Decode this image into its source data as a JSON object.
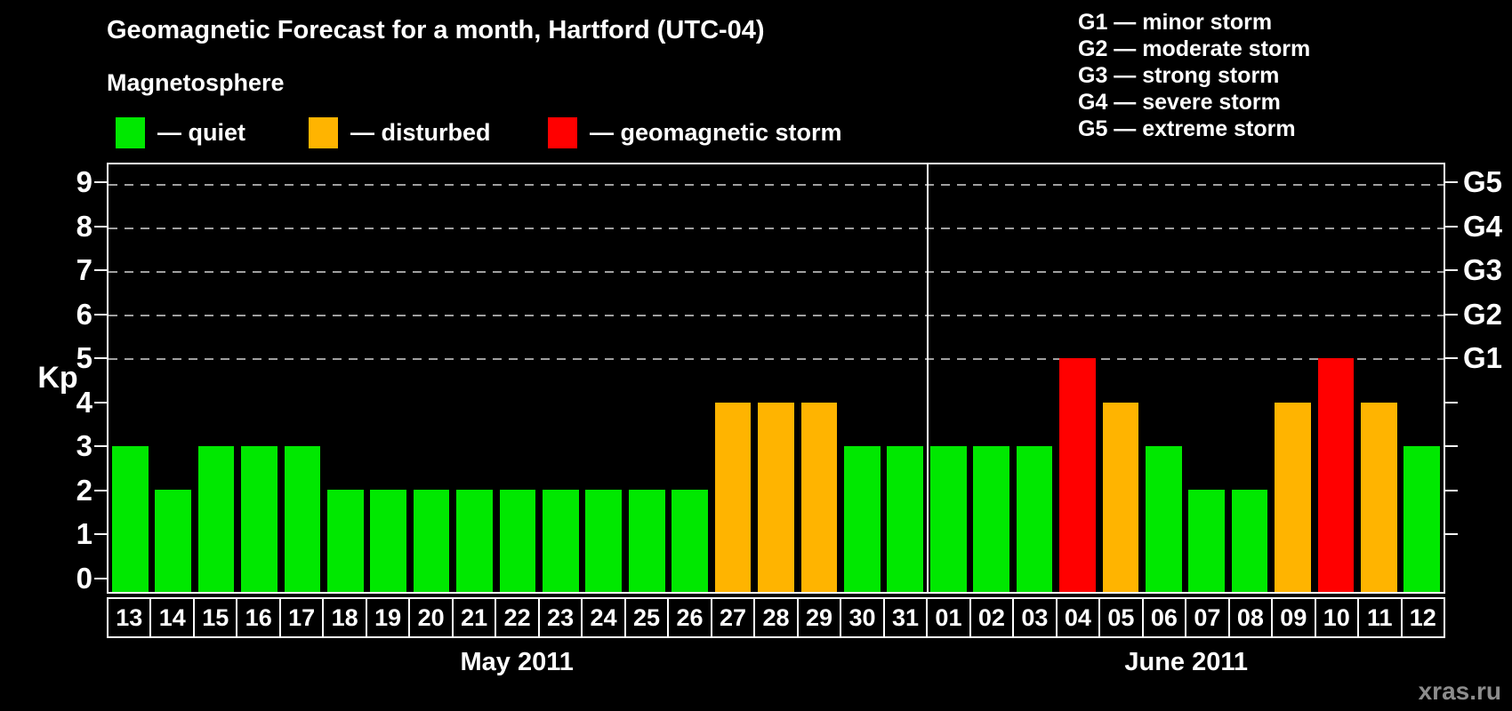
{
  "title": "Geomagnetic Forecast for a month, Hartford (UTC-04)",
  "subtitle": "Magnetosphere",
  "legend": {
    "items": [
      {
        "label": "— quiet",
        "status": "quiet",
        "color": "#00e800"
      },
      {
        "label": "— disturbed",
        "status": "disturbed",
        "color": "#ffb400"
      },
      {
        "label": "— geomagnetic storm",
        "status": "storm",
        "color": "#ff0000"
      }
    ]
  },
  "g_scale_legend": [
    "G1 — minor storm",
    "G2 — moderate storm",
    "G3 — strong storm",
    "G4 — severe storm",
    "G5 — extreme storm"
  ],
  "watermark": "xras.ru",
  "chart_data": {
    "type": "bar",
    "title": "Geomagnetic Forecast for a month, Hartford (UTC-04)",
    "ylabel": "Kp",
    "ylim": [
      0,
      9
    ],
    "y_ticks": [
      0,
      1,
      2,
      3,
      4,
      5,
      6,
      7,
      8,
      9
    ],
    "gridlines_kp": [
      5,
      6,
      7,
      8,
      9
    ],
    "grid": "dashed horizontal at storm levels only",
    "right_axis": [
      {
        "kp": 5,
        "label": "G1"
      },
      {
        "kp": 6,
        "label": "G2"
      },
      {
        "kp": 7,
        "label": "G3"
      },
      {
        "kp": 8,
        "label": "G4"
      },
      {
        "kp": 9,
        "label": "G5"
      }
    ],
    "months": [
      {
        "label": "May 2011",
        "days": 19
      },
      {
        "label": "June 2011",
        "days": 12
      }
    ],
    "categories": [
      "13",
      "14",
      "15",
      "16",
      "17",
      "18",
      "19",
      "20",
      "21",
      "22",
      "23",
      "24",
      "25",
      "26",
      "27",
      "28",
      "29",
      "30",
      "31",
      "01",
      "02",
      "03",
      "04",
      "05",
      "06",
      "07",
      "08",
      "09",
      "10",
      "11",
      "12"
    ],
    "values": [
      3,
      2,
      3,
      3,
      3,
      2,
      2,
      2,
      2,
      2,
      2,
      2,
      2,
      2,
      4,
      4,
      4,
      3,
      3,
      3,
      3,
      3,
      5,
      4,
      3,
      2,
      2,
      4,
      5,
      4,
      3
    ],
    "statuses": [
      "quiet",
      "quiet",
      "quiet",
      "quiet",
      "quiet",
      "quiet",
      "quiet",
      "quiet",
      "quiet",
      "quiet",
      "quiet",
      "quiet",
      "quiet",
      "quiet",
      "disturbed",
      "disturbed",
      "disturbed",
      "quiet",
      "quiet",
      "quiet",
      "quiet",
      "quiet",
      "storm",
      "disturbed",
      "quiet",
      "quiet",
      "quiet",
      "disturbed",
      "storm",
      "disturbed",
      "quiet"
    ],
    "colors": {
      "quiet": "#00e800",
      "disturbed": "#ffb400",
      "storm": "#ff0000"
    },
    "gridline_color": "#a0a0a0",
    "background": "#000000"
  }
}
